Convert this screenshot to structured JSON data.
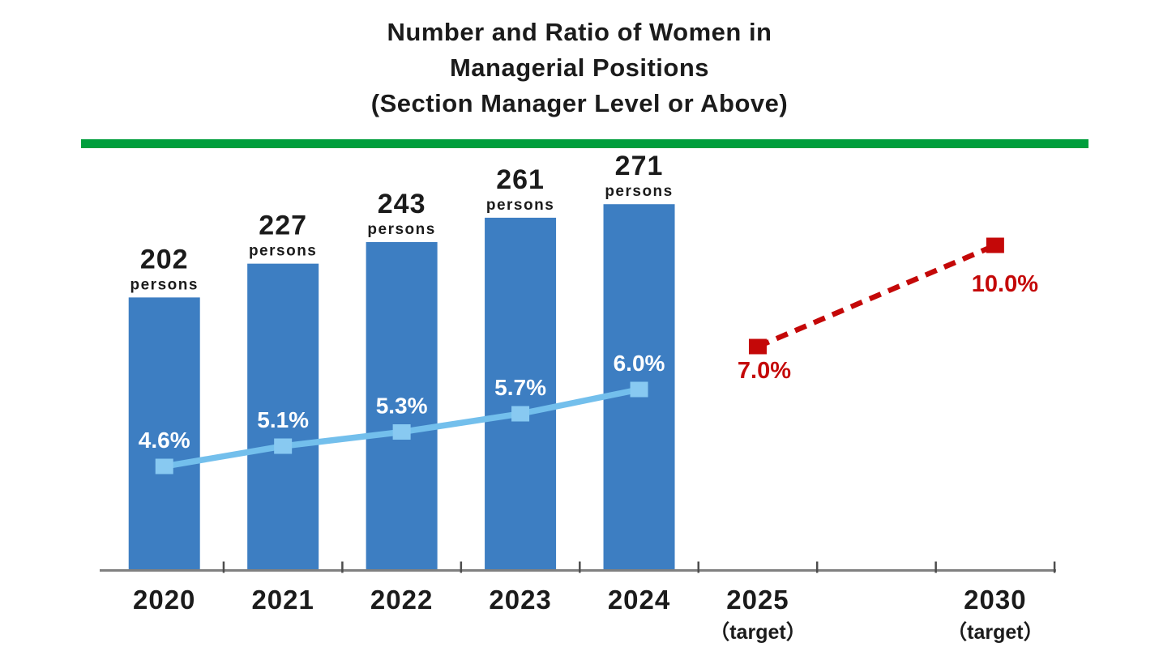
{
  "title": {
    "line1": "Number and Ratio of Women in",
    "line2": "Managerial Positions",
    "line3": "(Section Manager Level or Above)"
  },
  "colors": {
    "bar_blue": "#3D7EC2",
    "ratio_line_blue": "#73BFEC",
    "ratio_marker_blue": "#88C9F1",
    "target_red": "#C40808",
    "divider_green": "#009E3C",
    "axis_gray": "#808080",
    "tick_gray": "#4D4D4D",
    "text_black": "#1B1B1B",
    "ratio_label_white": "#FFFFFF"
  },
  "x_axis": {
    "slots": [
      {
        "slot": 0,
        "label": "2020",
        "sublabel": ""
      },
      {
        "slot": 1,
        "label": "2021",
        "sublabel": ""
      },
      {
        "slot": 2,
        "label": "2022",
        "sublabel": ""
      },
      {
        "slot": 3,
        "label": "2023",
        "sublabel": ""
      },
      {
        "slot": 4,
        "label": "2024",
        "sublabel": ""
      },
      {
        "slot": 5,
        "label": "2025",
        "sublabel": "（target）"
      },
      {
        "slot": 7,
        "label": "2030",
        "sublabel": "（target）"
      }
    ]
  },
  "chart_data": {
    "type": "bar",
    "title": "Number and Ratio of Women in Managerial Positions (Section Manager Level or Above)",
    "categories": [
      "2020",
      "2021",
      "2022",
      "2023",
      "2024",
      "2025 (target)",
      "2030 (target)"
    ],
    "grid": false,
    "legend": false,
    "value_labels_shown": true,
    "series": [
      {
        "name": "Number of women in managerial positions",
        "type": "bar",
        "unit": "persons",
        "unit_label": "persons",
        "categories": [
          "2020",
          "2021",
          "2022",
          "2023",
          "2024"
        ],
        "values": [
          202,
          227,
          243,
          261,
          271
        ],
        "value_labels": [
          "202",
          "227",
          "243",
          "261",
          "271"
        ]
      },
      {
        "name": "Ratio of women in managerial positions (actual)",
        "type": "line",
        "marker": "square",
        "unit": "%",
        "categories": [
          "2020",
          "2021",
          "2022",
          "2023",
          "2024"
        ],
        "values": [
          4.6,
          5.1,
          5.3,
          5.7,
          6.0
        ],
        "value_labels": [
          "4.6%",
          "5.1%",
          "5.3%",
          "5.7%",
          "6.0%"
        ]
      },
      {
        "name": "Ratio of women in managerial positions (target)",
        "type": "line",
        "style": "dashed",
        "marker": "square",
        "unit": "%",
        "categories": [
          "2025 (target)",
          "2030 (target)"
        ],
        "values": [
          7.0,
          10.0
        ],
        "value_labels": [
          "7.0%",
          "10.0%"
        ]
      }
    ]
  }
}
